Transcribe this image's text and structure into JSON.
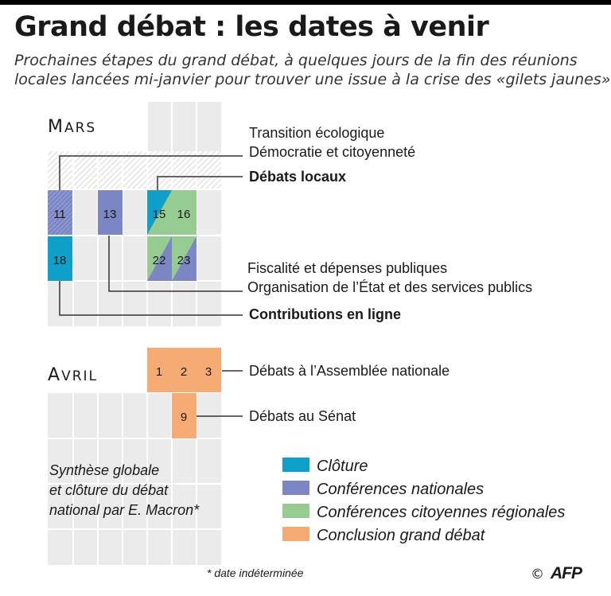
{
  "header": {
    "title": "Grand débat : les dates à venir",
    "subtitle_line1": "Prochaines étapes du grand débat, à quelques jours de la fin des réunions",
    "subtitle_line2": "locales lancées mi-janvier pour trouver une issue à la crise des «gilets jaunes»"
  },
  "colors": {
    "cloture": "#0ea0c8",
    "conferences_nationales": "#7b86c4",
    "conferences_regionales": "#96cc92",
    "conclusion": "#f6ab74",
    "calendar_grid": "#ebebeb",
    "connector": "#333333"
  },
  "months": {
    "mars_cap": "M",
    "mars_rest": "ARS",
    "avril_cap": "A",
    "avril_rest": "VRIL"
  },
  "days": {
    "d11": "11",
    "d13": "13",
    "d15": "15",
    "d16": "16",
    "d18": "18",
    "d22": "22",
    "d23": "23",
    "d1": "1",
    "d2": "2",
    "d3": "3",
    "d9": "9"
  },
  "events": {
    "transition": "Transition écologique",
    "democratie": "Démocratie et citoyenneté",
    "debats_locaux": "Débats locaux",
    "fiscalite": "Fiscalité et dépenses publiques",
    "organisation": "Organisation de l’État et des services publics",
    "contributions": "Contributions en ligne",
    "assemblee": "Débats à l’Assemblée nationale",
    "senat": "Débats au Sénat"
  },
  "synthese": {
    "line1": "Synthèse globale",
    "line2": "et clôture du débat",
    "line3": "national par E. Macron*"
  },
  "legend": [
    {
      "key": "cloture",
      "label": "Clôture",
      "icon": "legend-swatch"
    },
    {
      "key": "conferences_nationales",
      "label": "Conférences nationales",
      "icon": "legend-swatch"
    },
    {
      "key": "conferences_regionales",
      "label": "Conférences citoyennes régionales",
      "icon": "legend-swatch"
    },
    {
      "key": "conclusion",
      "label": "Conclusion grand débat",
      "icon": "legend-swatch"
    }
  ],
  "footer": {
    "note": "* date indéterminée",
    "copyright": "©",
    "agency": "AFP"
  }
}
